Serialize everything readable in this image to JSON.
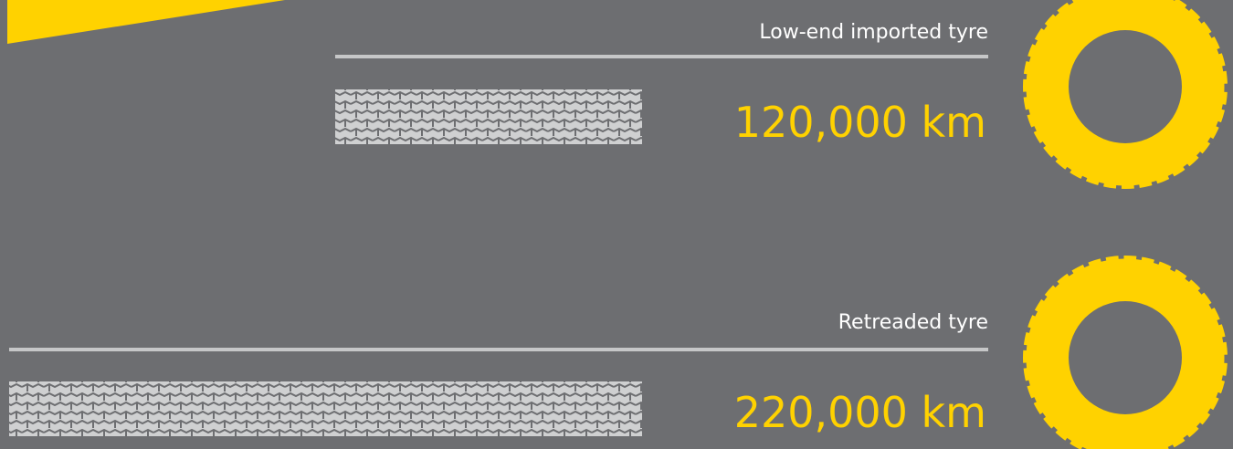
{
  "items": [
    {
      "label": "Low-end imported tyre",
      "value": "120,000 km"
    },
    {
      "label": "Retreaded tyre",
      "value": "220,000 km"
    }
  ]
}
